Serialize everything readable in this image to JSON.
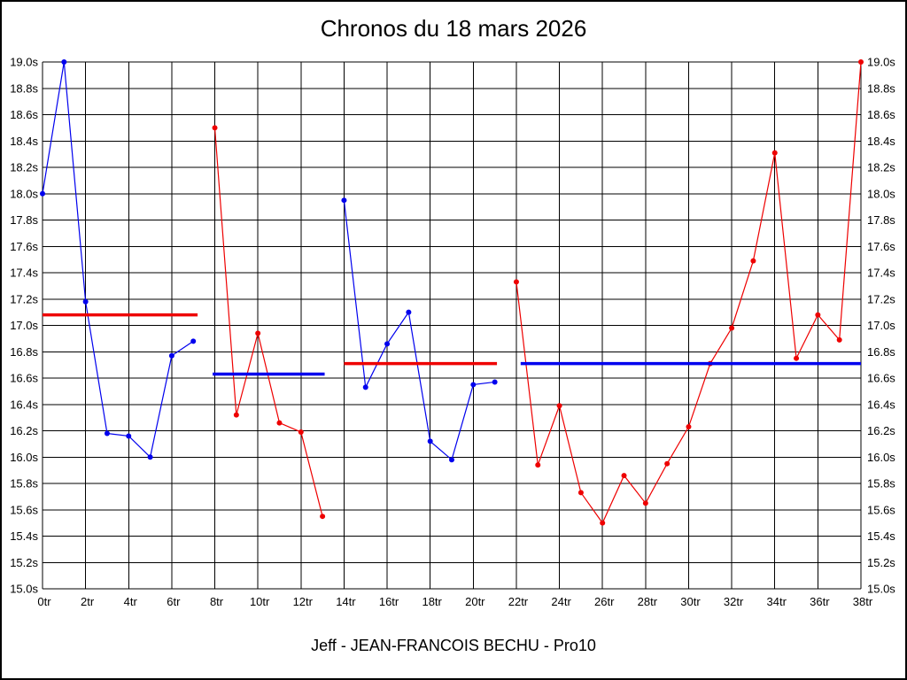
{
  "page": {
    "title": "Chronos du 18 mars 2026",
    "footer": "Jeff - JEAN-FRANCOIS BECHU - Pro10"
  },
  "chart_data": {
    "type": "line",
    "title": "Chronos du 18 mars 2026",
    "footer_caption": "Jeff - JEAN-FRANCOIS BECHU - Pro10",
    "xlabel": "",
    "ylabel": "",
    "x_unit": "tr",
    "y_unit": "s",
    "xlim": [
      0,
      38
    ],
    "ylim": [
      15.0,
      19.0
    ],
    "x_tick_step": 2,
    "y_tick_step": 0.2,
    "grid": true,
    "legend_position": "none",
    "colors": {
      "blue": "#0000ee",
      "red": "#ee0000"
    },
    "series": [
      {
        "name": "stint-1-laps",
        "kind": "points",
        "color": "#0000ee",
        "x": [
          0,
          1,
          2,
          3,
          4,
          5,
          6,
          7
        ],
        "y": [
          18.0,
          19.0,
          17.18,
          16.18,
          16.16,
          16.0,
          16.77,
          16.88
        ]
      },
      {
        "name": "stint-1-average",
        "kind": "average",
        "color": "#ee0000",
        "x_start": 0,
        "x_end": 7.2,
        "value": 17.08
      },
      {
        "name": "stint-2-laps",
        "kind": "points",
        "color": "#ee0000",
        "x": [
          8,
          9,
          10,
          11,
          12,
          13
        ],
        "y": [
          18.5,
          16.32,
          16.94,
          16.26,
          16.19,
          15.55
        ]
      },
      {
        "name": "stint-2-average",
        "kind": "average",
        "color": "#0000ee",
        "x_start": 7.9,
        "x_end": 13.1,
        "value": 16.63
      },
      {
        "name": "stint-3-laps",
        "kind": "points",
        "color": "#0000ee",
        "x": [
          14,
          15,
          16,
          17,
          18,
          19,
          20,
          21
        ],
        "y": [
          17.95,
          16.53,
          16.86,
          17.1,
          16.12,
          15.98,
          16.55,
          16.57
        ]
      },
      {
        "name": "stint-3-average",
        "kind": "average",
        "color": "#ee0000",
        "x_start": 14,
        "x_end": 21.1,
        "value": 16.71
      },
      {
        "name": "stint-4-laps",
        "kind": "points",
        "color": "#ee0000",
        "x": [
          22,
          23,
          24,
          25,
          26,
          27,
          28,
          29,
          30,
          31,
          32,
          33,
          34,
          35,
          36,
          37,
          38
        ],
        "y": [
          17.33,
          15.94,
          16.39,
          15.73,
          15.5,
          15.86,
          15.65,
          15.95,
          16.23,
          16.71,
          16.98,
          17.49,
          18.31,
          16.75,
          17.08,
          16.89,
          19.0
        ]
      },
      {
        "name": "stint-4-average",
        "kind": "average",
        "color": "#0000ee",
        "x_start": 22.2,
        "x_end": 38,
        "value": 16.71
      }
    ]
  }
}
